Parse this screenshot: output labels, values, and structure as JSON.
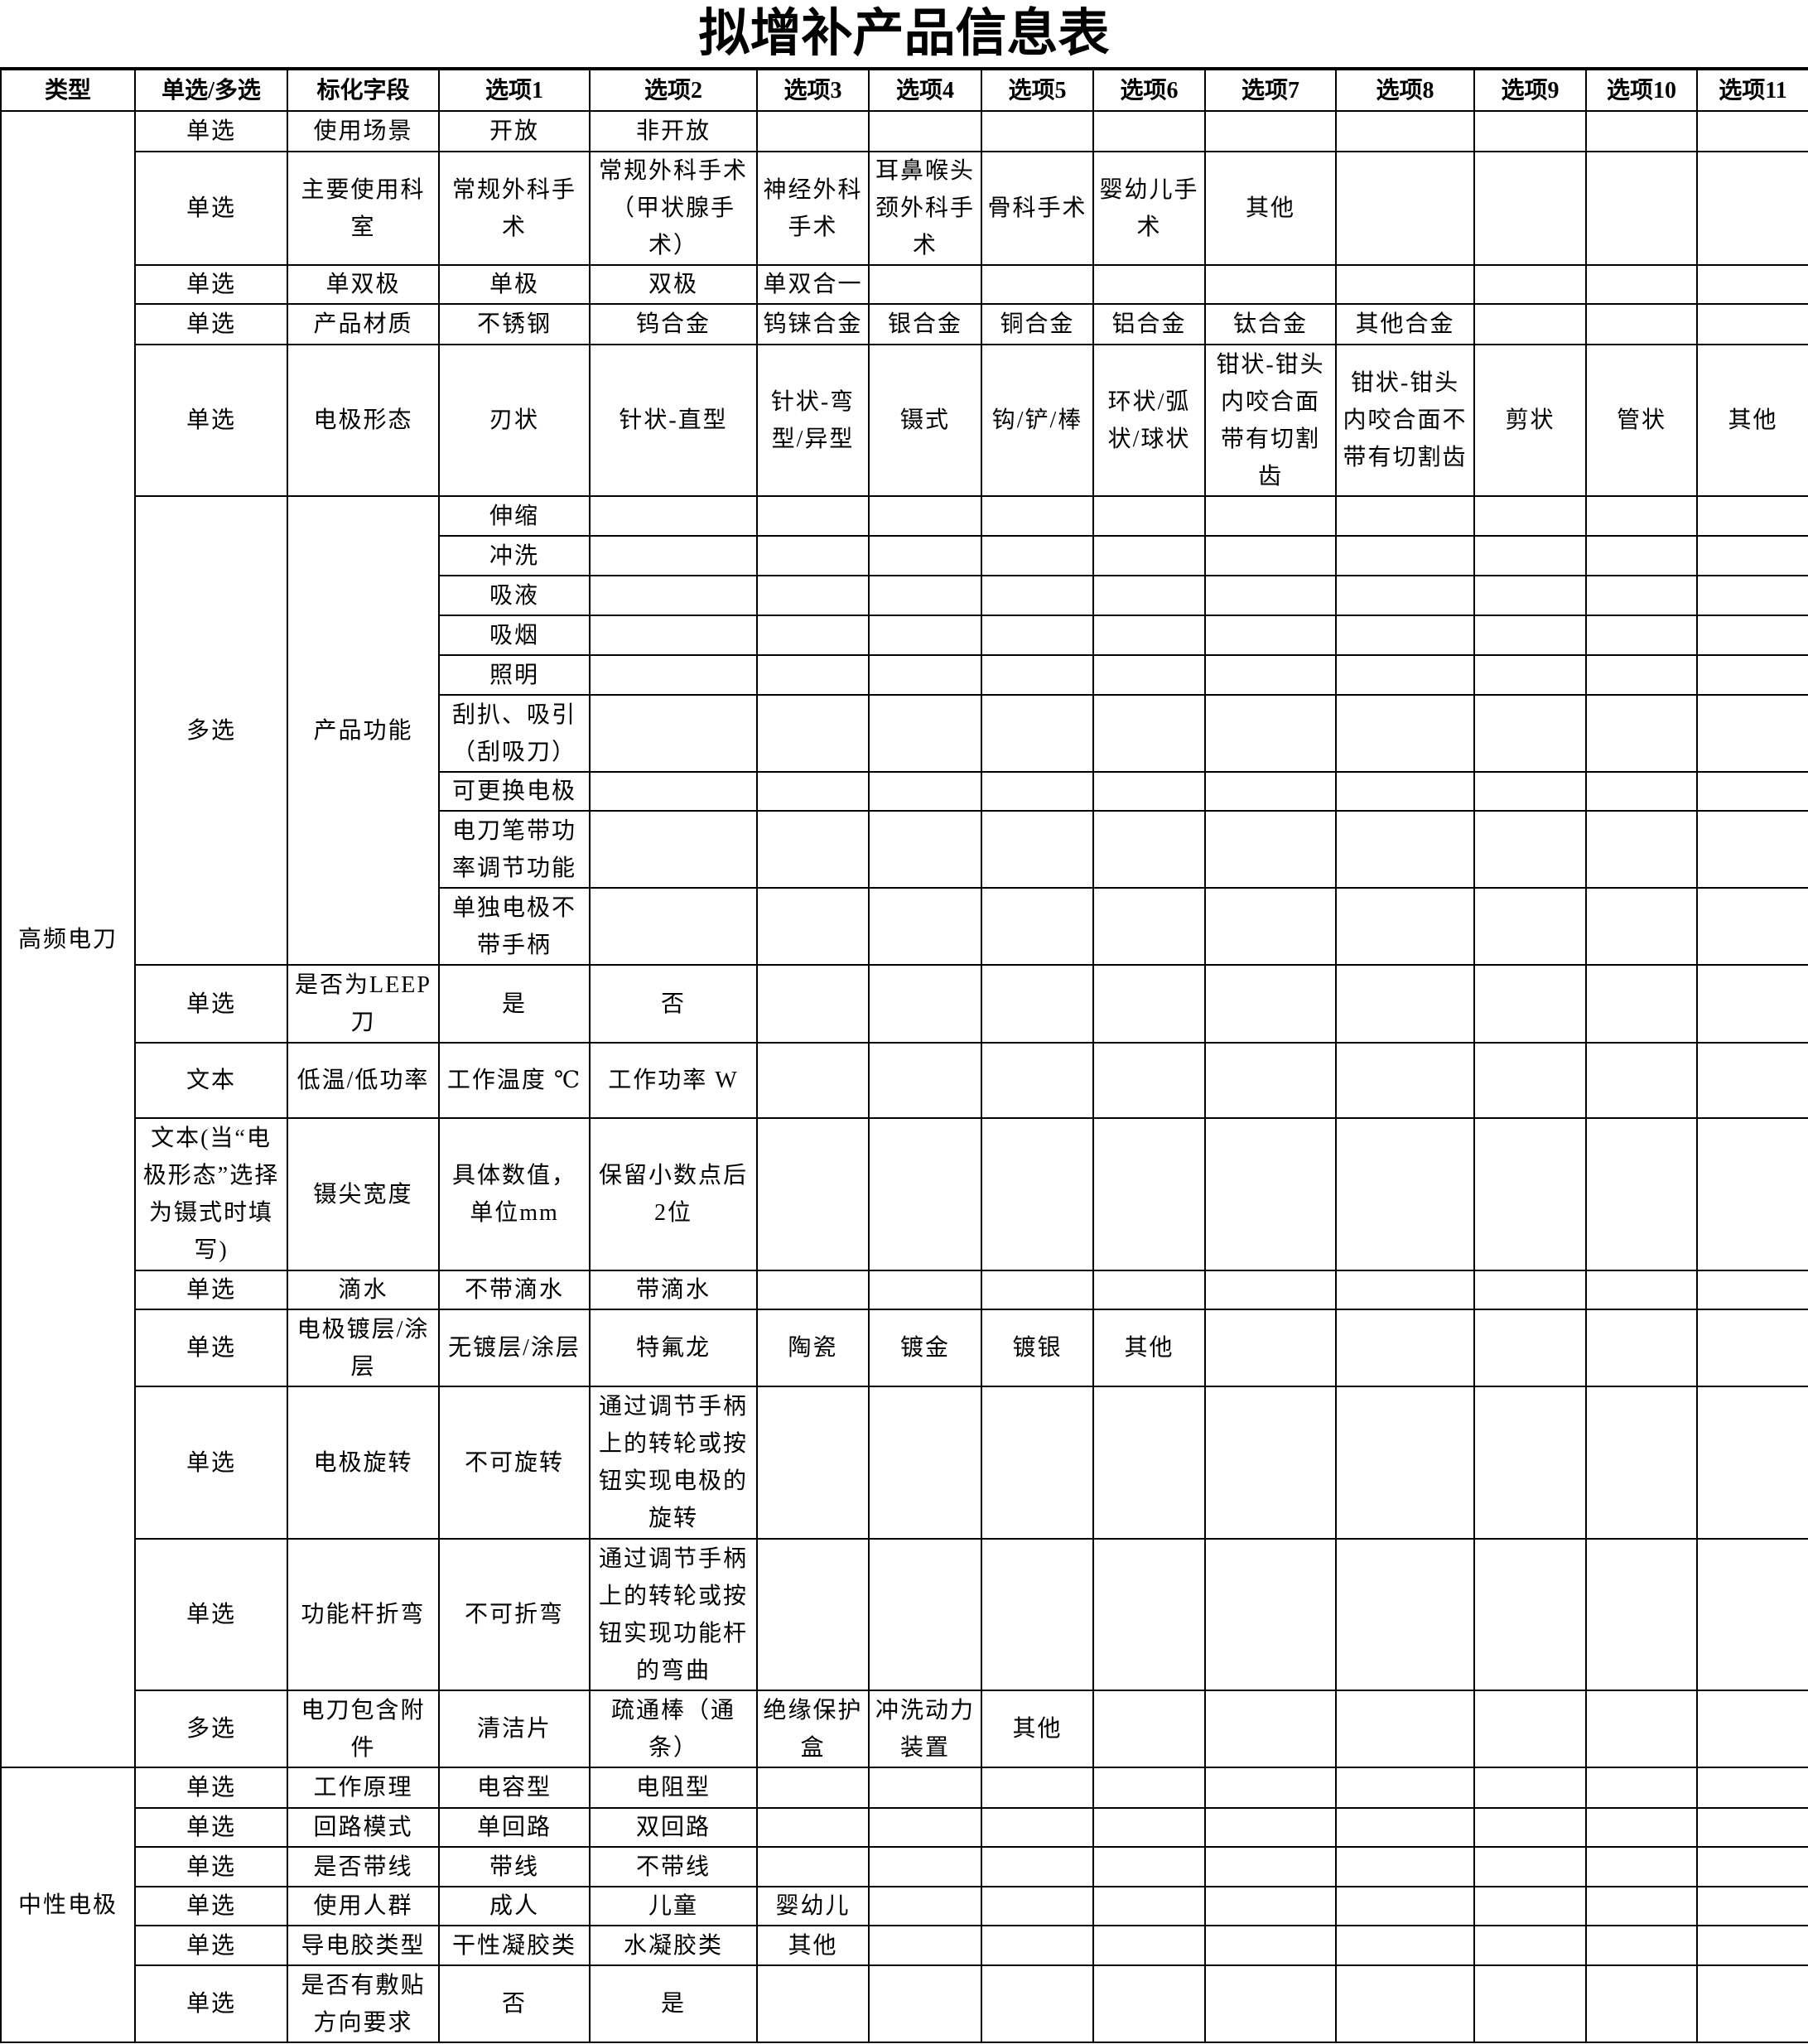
{
  "title": "拟增补产品信息表",
  "headers": [
    "类型",
    "单选/多选",
    "标化字段",
    "选项1",
    "选项2",
    "选项3",
    "选项4",
    "选项5",
    "选项6",
    "选项7",
    "选项8",
    "选项9",
    "选项10",
    "选项11"
  ],
  "sections": [
    {
      "type": "高频电刀",
      "rows": [
        {
          "mode": "单选",
          "field": "使用场景",
          "options": [
            "开放",
            "非开放"
          ]
        },
        {
          "mode": "单选",
          "field": "主要使用科室",
          "options": [
            "常规外科手术",
            "常规外科手术（甲状腺手术）",
            "神经外科手术",
            "耳鼻喉头颈外科手术",
            "骨科手术",
            "婴幼儿手术",
            "其他"
          ]
        },
        {
          "mode": "单选",
          "field": "单双极",
          "options": [
            "单极",
            "双极",
            "单双合一"
          ]
        },
        {
          "mode": "单选",
          "field": "产品材质",
          "options": [
            "不锈钢",
            "钨合金",
            "钨铼合金",
            "银合金",
            "铜合金",
            "铝合金",
            "钛合金",
            "其他合金"
          ]
        },
        {
          "mode": "单选",
          "field": "电极形态",
          "options": [
            "刃状",
            "针状-直型",
            "针状-弯型/异型",
            "镊式",
            "钩/铲/棒",
            "环状/弧状/球状",
            "钳状-钳头内咬合面带有切割齿",
            "钳状-钳头内咬合面不带有切割齿",
            "剪状",
            "管状",
            "其他"
          ]
        },
        {
          "mode": "多选",
          "field": "产品功能",
          "sub": [
            "伸缩",
            "冲洗",
            "吸液",
            "吸烟",
            "照明",
            "刮扒、吸引（刮吸刀）",
            "可更换电极",
            "电刀笔带功率调节功能",
            "单独电极不带手柄"
          ]
        },
        {
          "mode": "单选",
          "field": "是否为LEEP刀",
          "options": [
            "是",
            "否"
          ]
        },
        {
          "mode": "文本",
          "field": "低温/低功率",
          "options": [
            "工作温度 ℃",
            "工作功率  W"
          ]
        },
        {
          "mode": "文本(当“电极形态”选择为镊式时填写)",
          "field": "镊尖宽度",
          "options": [
            "具体数值，单位mm",
            "保留小数点后2位"
          ]
        },
        {
          "mode": "单选",
          "field": "滴水",
          "options": [
            "不带滴水",
            "带滴水"
          ]
        },
        {
          "mode": "单选",
          "field": "电极镀层/涂层",
          "options": [
            "无镀层/涂层",
            "特氟龙",
            "陶瓷",
            "镀金",
            "镀银",
            "其他"
          ]
        },
        {
          "mode": "单选",
          "field": "电极旋转",
          "options": [
            "不可旋转",
            "通过调节手柄上的转轮或按钮实现电极的旋转"
          ]
        },
        {
          "mode": "单选",
          "field": "功能杆折弯",
          "options": [
            "不可折弯",
            "通过调节手柄上的转轮或按钮实现功能杆的弯曲"
          ]
        },
        {
          "mode": "多选",
          "field": "电刀包含附件",
          "options": [
            "清洁片",
            "疏通棒（通条）",
            "绝缘保护盒",
            "冲洗动力装置",
            "其他"
          ]
        }
      ]
    },
    {
      "type": "中性电极",
      "rows": [
        {
          "mode": "单选",
          "field": "工作原理",
          "options": [
            "电容型",
            "电阻型"
          ]
        },
        {
          "mode": "单选",
          "field": "回路模式",
          "options": [
            "单回路",
            "双回路"
          ]
        },
        {
          "mode": "单选",
          "field": "是否带线",
          "options": [
            "带线",
            "不带线"
          ]
        },
        {
          "mode": "单选",
          "field": "使用人群",
          "options": [
            "成人",
            "儿童",
            "婴幼儿"
          ]
        },
        {
          "mode": "单选",
          "field": "导电胶类型",
          "options": [
            "干性凝胶类",
            "水凝胶类",
            "其他"
          ]
        },
        {
          "mode": "单选",
          "field": "是否有敷贴方向要求",
          "options": [
            "否",
            "是"
          ]
        }
      ]
    }
  ]
}
